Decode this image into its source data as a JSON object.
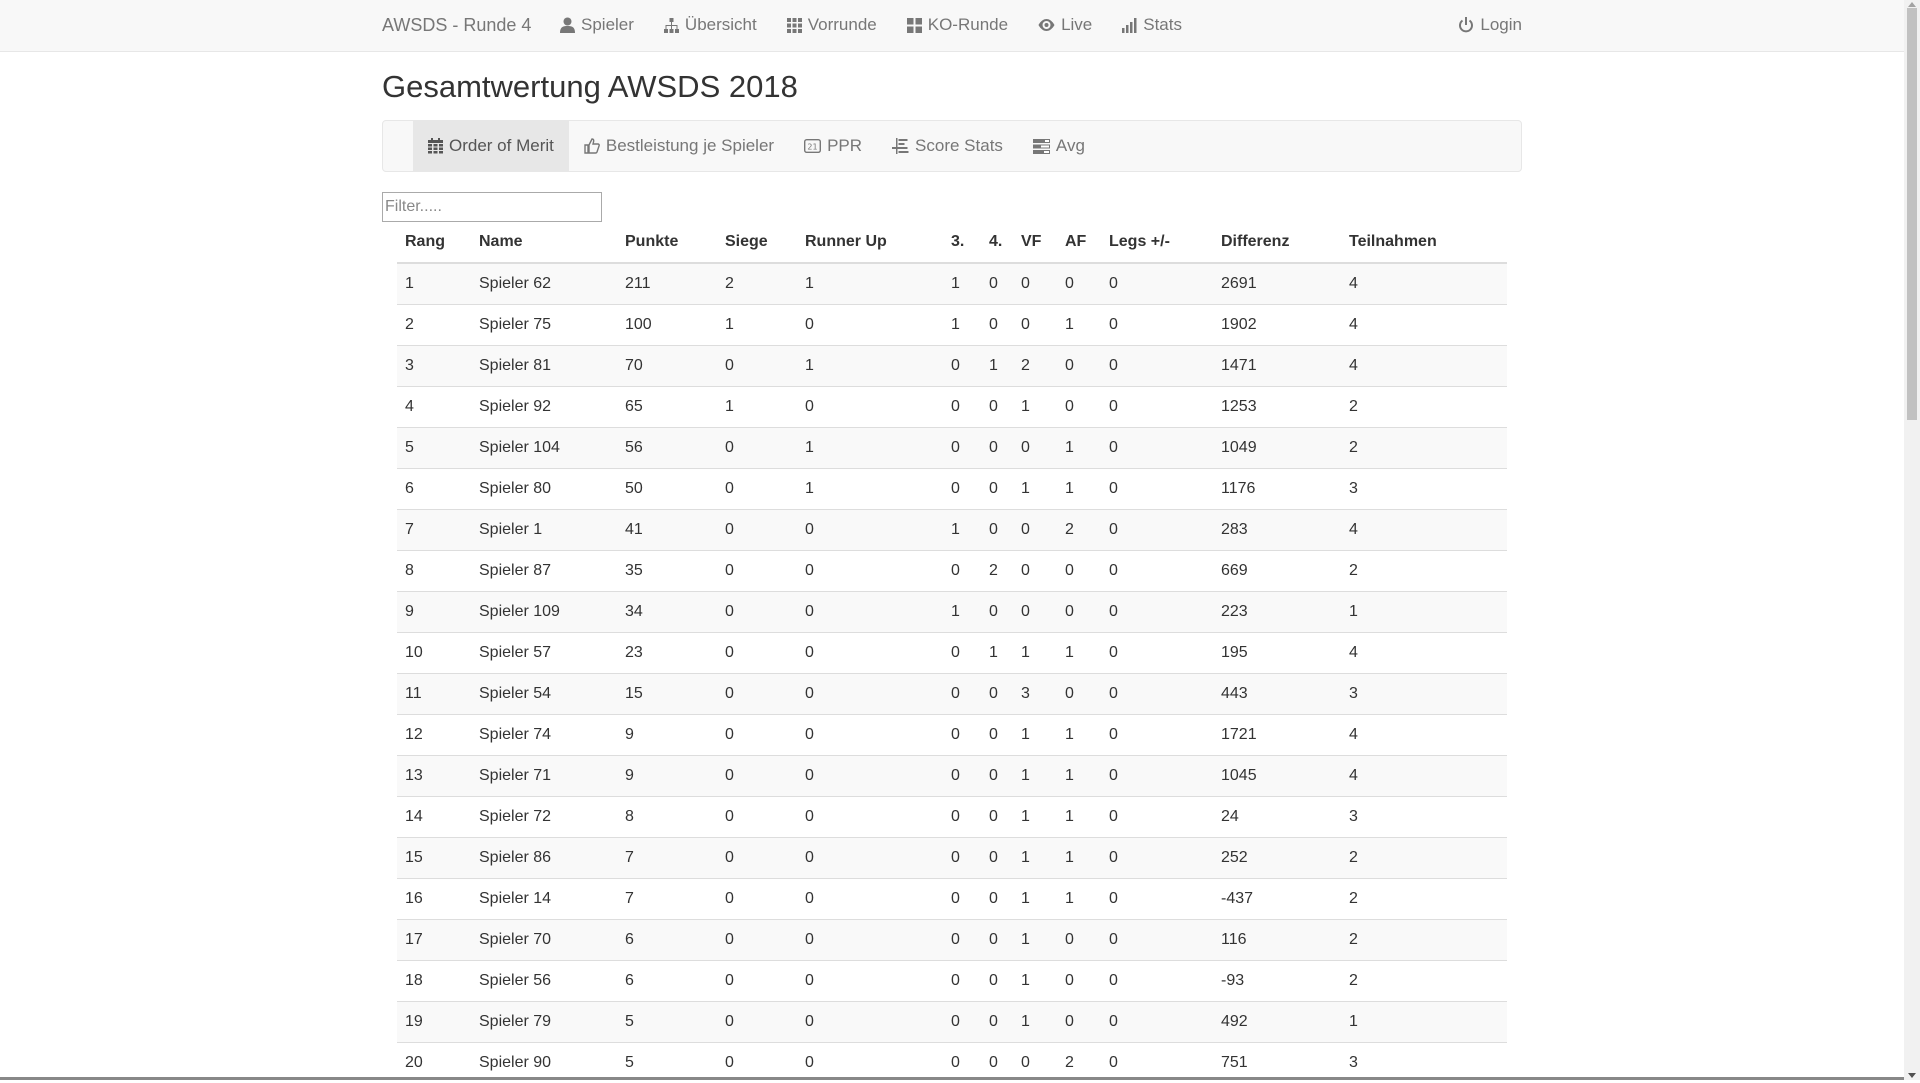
{
  "nav": {
    "brand": "AWSDS - Runde 4",
    "items": [
      {
        "label": "Spieler",
        "icon": "user-icon"
      },
      {
        "label": "Übersicht",
        "icon": "sitemap-icon"
      },
      {
        "label": "Vorrunde",
        "icon": "grid-icon"
      },
      {
        "label": "KO-Runde",
        "icon": "squares-icon"
      },
      {
        "label": "Live",
        "icon": "eye-icon"
      },
      {
        "label": "Stats",
        "icon": "stats-icon"
      }
    ],
    "login": "Login"
  },
  "page": {
    "title": "Gesamtwertung AWSDS 2018"
  },
  "tabs": [
    {
      "label": "Order of Merit",
      "icon": "calendar-icon",
      "active": true
    },
    {
      "label": "Bestleistung je Spieler",
      "icon": "thumbs-up-icon",
      "active": false
    },
    {
      "label": "PPR",
      "icon": "ppr-icon",
      "active": false
    },
    {
      "label": "Score Stats",
      "icon": "align-icon",
      "active": false
    },
    {
      "label": "Avg",
      "icon": "tasks-icon",
      "active": false
    }
  ],
  "filter": {
    "placeholder": "Filter.....",
    "value": ""
  },
  "table": {
    "columns": [
      "Rang",
      "Name",
      "Punkte",
      "Siege",
      "Runner Up",
      "3.",
      "4.",
      "VF",
      "AF",
      "Legs +/-",
      "Differenz",
      "Teilnahmen"
    ],
    "rows": [
      [
        "1",
        "Spieler 62",
        "211",
        "2",
        "1",
        "1",
        "0",
        "0",
        "0",
        "0",
        "2691",
        "4"
      ],
      [
        "2",
        "Spieler 75",
        "100",
        "1",
        "0",
        "1",
        "0",
        "0",
        "1",
        "0",
        "1902",
        "4"
      ],
      [
        "3",
        "Spieler 81",
        "70",
        "0",
        "1",
        "0",
        "1",
        "2",
        "0",
        "0",
        "1471",
        "4"
      ],
      [
        "4",
        "Spieler 92",
        "65",
        "1",
        "0",
        "0",
        "0",
        "1",
        "0",
        "0",
        "1253",
        "2"
      ],
      [
        "5",
        "Spieler 104",
        "56",
        "0",
        "1",
        "0",
        "0",
        "0",
        "1",
        "0",
        "1049",
        "2"
      ],
      [
        "6",
        "Spieler 80",
        "50",
        "0",
        "1",
        "0",
        "0",
        "1",
        "1",
        "0",
        "1176",
        "3"
      ],
      [
        "7",
        "Spieler 1",
        "41",
        "0",
        "0",
        "1",
        "0",
        "0",
        "2",
        "0",
        "283",
        "4"
      ],
      [
        "8",
        "Spieler 87",
        "35",
        "0",
        "0",
        "0",
        "2",
        "0",
        "0",
        "0",
        "669",
        "2"
      ],
      [
        "9",
        "Spieler 109",
        "34",
        "0",
        "0",
        "1",
        "0",
        "0",
        "0",
        "0",
        "223",
        "1"
      ],
      [
        "10",
        "Spieler 57",
        "23",
        "0",
        "0",
        "0",
        "1",
        "1",
        "1",
        "0",
        "195",
        "4"
      ],
      [
        "11",
        "Spieler 54",
        "15",
        "0",
        "0",
        "0",
        "0",
        "3",
        "0",
        "0",
        "443",
        "3"
      ],
      [
        "12",
        "Spieler 74",
        "9",
        "0",
        "0",
        "0",
        "0",
        "1",
        "1",
        "0",
        "1721",
        "4"
      ],
      [
        "13",
        "Spieler 71",
        "9",
        "0",
        "0",
        "0",
        "0",
        "1",
        "1",
        "0",
        "1045",
        "4"
      ],
      [
        "14",
        "Spieler 72",
        "8",
        "0",
        "0",
        "0",
        "0",
        "1",
        "1",
        "0",
        "24",
        "3"
      ],
      [
        "15",
        "Spieler 86",
        "7",
        "0",
        "0",
        "0",
        "0",
        "1",
        "1",
        "0",
        "252",
        "2"
      ],
      [
        "16",
        "Spieler 14",
        "7",
        "0",
        "0",
        "0",
        "0",
        "1",
        "1",
        "0",
        "-437",
        "2"
      ],
      [
        "17",
        "Spieler 70",
        "6",
        "0",
        "0",
        "0",
        "0",
        "1",
        "0",
        "0",
        "116",
        "2"
      ],
      [
        "18",
        "Spieler 56",
        "6",
        "0",
        "0",
        "0",
        "0",
        "1",
        "0",
        "0",
        "-93",
        "2"
      ],
      [
        "19",
        "Spieler 79",
        "5",
        "0",
        "0",
        "0",
        "0",
        "1",
        "0",
        "0",
        "492",
        "1"
      ],
      [
        "20",
        "Spieler 90",
        "5",
        "0",
        "0",
        "0",
        "0",
        "0",
        "2",
        "0",
        "751",
        "3"
      ]
    ]
  }
}
